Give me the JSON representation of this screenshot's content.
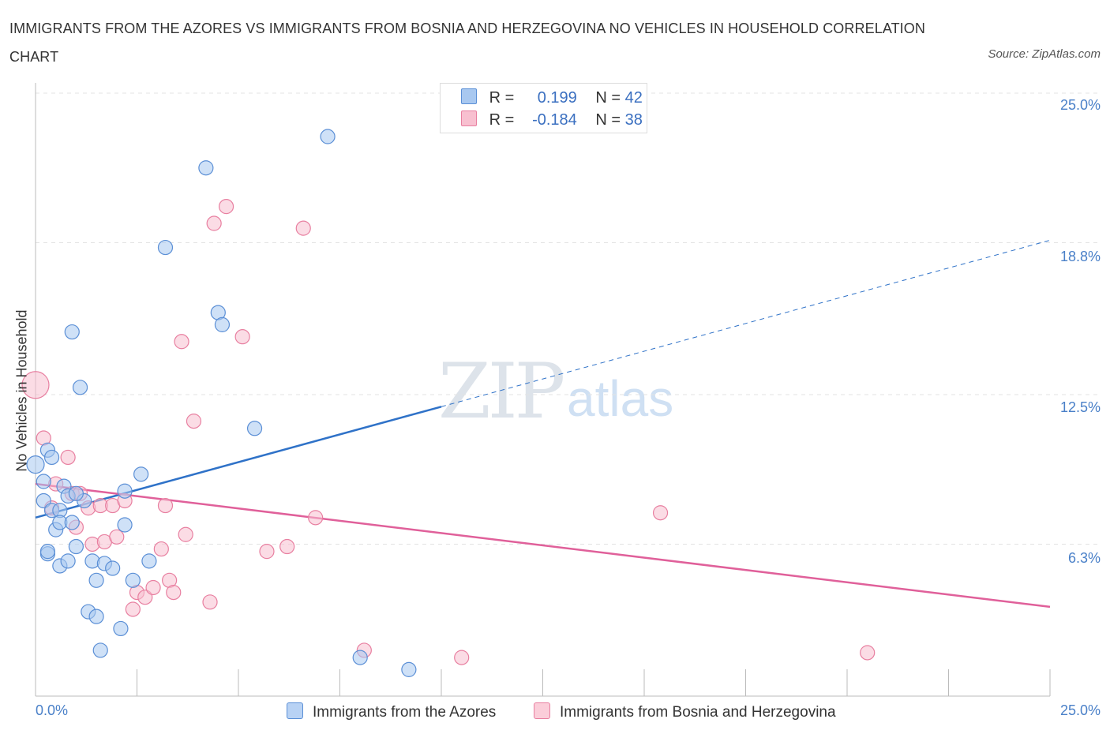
{
  "title": "IMMIGRANTS FROM THE AZORES VS IMMIGRANTS FROM BOSNIA AND HERZEGOVINA NO VEHICLES IN HOUSEHOLD CORRELATION CHART",
  "source": "Source: ZipAtlas.com",
  "watermark": {
    "zip": "ZIP",
    "atlas": "atlas"
  },
  "legend": {
    "r_label": "R =",
    "n_label": "N =",
    "series1": {
      "r": "0.199",
      "n": "42"
    },
    "series2": {
      "r": "-0.184",
      "n": "38"
    }
  },
  "chart_data": {
    "type": "scatter",
    "title": "IMMIGRANTS FROM THE AZORES VS IMMIGRANTS FROM BOSNIA AND HERZEGOVINA NO VEHICLES IN HOUSEHOLD CORRELATION CHART",
    "xlabel": "",
    "ylabel": "No Vehicles in Household",
    "xlim": [
      0,
      25
    ],
    "ylim": [
      0,
      25
    ],
    "x_tick_labels": [
      "0.0%",
      "25.0%"
    ],
    "y_ticks": [
      6.3,
      12.5,
      18.8,
      25.0
    ],
    "y_tick_labels": [
      "6.3%",
      "12.5%",
      "18.8%",
      "25.0%"
    ],
    "grid": true,
    "legend_position": "top-center",
    "series": [
      {
        "name": "Immigrants from the Azores",
        "color": "#a8c8f0",
        "edge": "#5b8fd6",
        "line_color": "#2f72c8",
        "trend": {
          "x0": 0,
          "y0": 7.4,
          "x1": 25,
          "y1": 18.9,
          "solid_until_x": 10
        },
        "points": [
          {
            "x": 0.0,
            "y": 9.6,
            "s": 11
          },
          {
            "x": 0.2,
            "y": 8.1,
            "s": 9
          },
          {
            "x": 0.2,
            "y": 8.9,
            "s": 9
          },
          {
            "x": 0.3,
            "y": 5.9,
            "s": 9
          },
          {
            "x": 0.3,
            "y": 6.0,
            "s": 9
          },
          {
            "x": 0.3,
            "y": 10.2,
            "s": 9
          },
          {
            "x": 0.4,
            "y": 7.7,
            "s": 9
          },
          {
            "x": 0.4,
            "y": 9.9,
            "s": 9
          },
          {
            "x": 0.5,
            "y": 6.9,
            "s": 9
          },
          {
            "x": 0.6,
            "y": 7.7,
            "s": 9
          },
          {
            "x": 0.6,
            "y": 7.2,
            "s": 9
          },
          {
            "x": 0.6,
            "y": 5.4,
            "s": 9
          },
          {
            "x": 0.7,
            "y": 8.7,
            "s": 9
          },
          {
            "x": 0.8,
            "y": 8.3,
            "s": 9
          },
          {
            "x": 0.8,
            "y": 5.6,
            "s": 9
          },
          {
            "x": 0.9,
            "y": 7.2,
            "s": 9
          },
          {
            "x": 0.9,
            "y": 15.1,
            "s": 9
          },
          {
            "x": 1.0,
            "y": 6.2,
            "s": 9
          },
          {
            "x": 1.1,
            "y": 12.8,
            "s": 9
          },
          {
            "x": 1.2,
            "y": 8.1,
            "s": 9
          },
          {
            "x": 1.3,
            "y": 3.5,
            "s": 9
          },
          {
            "x": 1.4,
            "y": 5.6,
            "s": 9
          },
          {
            "x": 1.5,
            "y": 3.3,
            "s": 9
          },
          {
            "x": 1.5,
            "y": 4.8,
            "s": 9
          },
          {
            "x": 1.6,
            "y": 1.9,
            "s": 9
          },
          {
            "x": 1.7,
            "y": 5.5,
            "s": 9
          },
          {
            "x": 1.9,
            "y": 5.3,
            "s": 9
          },
          {
            "x": 2.1,
            "y": 2.8,
            "s": 9
          },
          {
            "x": 2.2,
            "y": 7.1,
            "s": 9
          },
          {
            "x": 2.2,
            "y": 8.5,
            "s": 9
          },
          {
            "x": 2.4,
            "y": 4.8,
            "s": 9
          },
          {
            "x": 2.6,
            "y": 9.2,
            "s": 9
          },
          {
            "x": 2.8,
            "y": 5.6,
            "s": 9
          },
          {
            "x": 3.2,
            "y": 18.6,
            "s": 9
          },
          {
            "x": 4.2,
            "y": 21.9,
            "s": 9
          },
          {
            "x": 4.5,
            "y": 15.9,
            "s": 9
          },
          {
            "x": 4.6,
            "y": 15.4,
            "s": 9
          },
          {
            "x": 5.4,
            "y": 11.1,
            "s": 9
          },
          {
            "x": 7.2,
            "y": 23.2,
            "s": 9
          },
          {
            "x": 8.0,
            "y": 1.6,
            "s": 9
          },
          {
            "x": 9.2,
            "y": 1.1,
            "s": 9
          },
          {
            "x": 1.0,
            "y": 8.4,
            "s": 9
          }
        ]
      },
      {
        "name": "Immigrants from Bosnia and Herzegovina",
        "color": "#f8c0d0",
        "edge": "#e87fa0",
        "line_color": "#e0609a",
        "trend": {
          "x0": 0,
          "y0": 8.8,
          "x1": 25,
          "y1": 3.7
        },
        "points": [
          {
            "x": 0.0,
            "y": 12.9,
            "s": 17
          },
          {
            "x": 0.2,
            "y": 10.7,
            "s": 9
          },
          {
            "x": 0.4,
            "y": 7.8,
            "s": 9
          },
          {
            "x": 0.5,
            "y": 8.8,
            "s": 9
          },
          {
            "x": 0.8,
            "y": 9.9,
            "s": 9
          },
          {
            "x": 0.9,
            "y": 8.4,
            "s": 9
          },
          {
            "x": 1.0,
            "y": 7.0,
            "s": 9
          },
          {
            "x": 1.1,
            "y": 8.4,
            "s": 9
          },
          {
            "x": 1.3,
            "y": 7.8,
            "s": 9
          },
          {
            "x": 1.4,
            "y": 6.3,
            "s": 9
          },
          {
            "x": 1.6,
            "y": 7.9,
            "s": 9
          },
          {
            "x": 1.7,
            "y": 6.4,
            "s": 9
          },
          {
            "x": 1.9,
            "y": 7.9,
            "s": 9
          },
          {
            "x": 2.0,
            "y": 6.6,
            "s": 9
          },
          {
            "x": 2.2,
            "y": 8.1,
            "s": 9
          },
          {
            "x": 2.4,
            "y": 3.6,
            "s": 9
          },
          {
            "x": 2.5,
            "y": 4.3,
            "s": 9
          },
          {
            "x": 2.7,
            "y": 4.1,
            "s": 9
          },
          {
            "x": 2.9,
            "y": 4.5,
            "s": 9
          },
          {
            "x": 3.1,
            "y": 6.1,
            "s": 9
          },
          {
            "x": 3.2,
            "y": 7.9,
            "s": 9
          },
          {
            "x": 3.3,
            "y": 4.8,
            "s": 9
          },
          {
            "x": 3.4,
            "y": 4.3,
            "s": 9
          },
          {
            "x": 3.6,
            "y": 14.7,
            "s": 9
          },
          {
            "x": 3.7,
            "y": 6.7,
            "s": 9
          },
          {
            "x": 3.9,
            "y": 11.4,
            "s": 9
          },
          {
            "x": 4.3,
            "y": 3.9,
            "s": 9
          },
          {
            "x": 4.4,
            "y": 19.6,
            "s": 9
          },
          {
            "x": 4.7,
            "y": 20.3,
            "s": 9
          },
          {
            "x": 5.1,
            "y": 14.9,
            "s": 9
          },
          {
            "x": 5.7,
            "y": 6.0,
            "s": 9
          },
          {
            "x": 6.2,
            "y": 6.2,
            "s": 9
          },
          {
            "x": 6.6,
            "y": 19.4,
            "s": 9
          },
          {
            "x": 6.9,
            "y": 7.4,
            "s": 9
          },
          {
            "x": 8.1,
            "y": 1.9,
            "s": 9
          },
          {
            "x": 10.5,
            "y": 1.6,
            "s": 9
          },
          {
            "x": 15.4,
            "y": 7.6,
            "s": 9
          },
          {
            "x": 20.5,
            "y": 1.8,
            "s": 9
          }
        ]
      }
    ]
  }
}
